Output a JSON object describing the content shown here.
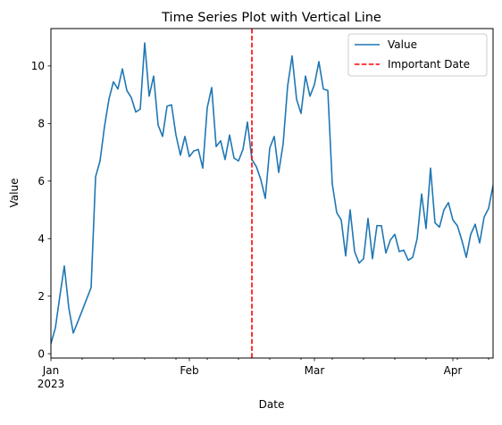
{
  "chart_data": {
    "type": "line",
    "title": "Time Series Plot with Vertical Line",
    "xlabel": "Date",
    "ylabel": "Value",
    "x_start": "2023-01-01",
    "x_end": "2023-04-10",
    "ylim": [
      -0.15,
      11.3
    ],
    "y_ticks": [
      0,
      2,
      4,
      6,
      8,
      10
    ],
    "x_ticks_major": [
      {
        "date": "2023-01-01",
        "label": "Jan",
        "sublabel": "2023"
      },
      {
        "date": "2023-02-01",
        "label": "Feb",
        "sublabel": ""
      },
      {
        "date": "2023-03-01",
        "label": "Mar",
        "sublabel": ""
      },
      {
        "date": "2023-04-01",
        "label": "Apr",
        "sublabel": ""
      }
    ],
    "x_ticks_minor": [
      "2023-01-08",
      "2023-01-15",
      "2023-01-22",
      "2023-01-29",
      "2023-02-05",
      "2023-02-12",
      "2023-02-19",
      "2023-02-26",
      "2023-03-05",
      "2023-03-12",
      "2023-03-19",
      "2023-03-26",
      "2023-04-02",
      "2023-04-09"
    ],
    "legend_position": "top-right",
    "series": [
      {
        "name": "Value",
        "color": "#1f77b4",
        "style": "solid",
        "points": [
          [
            "2023-01-01",
            0.35
          ],
          [
            "2023-01-02",
            0.9
          ],
          [
            "2023-01-03",
            2.0
          ],
          [
            "2023-01-04",
            3.05
          ],
          [
            "2023-01-05",
            1.6
          ],
          [
            "2023-01-06",
            0.72
          ],
          [
            "2023-01-07",
            1.1
          ],
          [
            "2023-01-08",
            1.5
          ],
          [
            "2023-01-09",
            1.9
          ],
          [
            "2023-01-10",
            2.3
          ],
          [
            "2023-01-11",
            6.15
          ],
          [
            "2023-01-12",
            6.7
          ],
          [
            "2023-01-13",
            7.9
          ],
          [
            "2023-01-14",
            8.85
          ],
          [
            "2023-01-15",
            9.45
          ],
          [
            "2023-01-16",
            9.2
          ],
          [
            "2023-01-17",
            9.9
          ],
          [
            "2023-01-18",
            9.15
          ],
          [
            "2023-01-19",
            8.9
          ],
          [
            "2023-01-20",
            8.4
          ],
          [
            "2023-01-21",
            8.5
          ],
          [
            "2023-01-22",
            10.8
          ],
          [
            "2023-01-23",
            8.95
          ],
          [
            "2023-01-24",
            9.65
          ],
          [
            "2023-01-25",
            7.95
          ],
          [
            "2023-01-26",
            7.55
          ],
          [
            "2023-01-27",
            8.6
          ],
          [
            "2023-01-28",
            8.65
          ],
          [
            "2023-01-29",
            7.6
          ],
          [
            "2023-01-30",
            6.9
          ],
          [
            "2023-01-31",
            7.55
          ],
          [
            "2023-02-01",
            6.85
          ],
          [
            "2023-02-02",
            7.05
          ],
          [
            "2023-02-03",
            7.1
          ],
          [
            "2023-02-04",
            6.45
          ],
          [
            "2023-02-05",
            8.55
          ],
          [
            "2023-02-06",
            9.25
          ],
          [
            "2023-02-07",
            7.2
          ],
          [
            "2023-02-08",
            7.4
          ],
          [
            "2023-02-09",
            6.75
          ],
          [
            "2023-02-10",
            7.6
          ],
          [
            "2023-02-11",
            6.8
          ],
          [
            "2023-02-12",
            6.7
          ],
          [
            "2023-02-13",
            7.1
          ],
          [
            "2023-02-14",
            8.05
          ],
          [
            "2023-02-15",
            6.75
          ],
          [
            "2023-02-16",
            6.5
          ],
          [
            "2023-02-17",
            6.05
          ],
          [
            "2023-02-18",
            5.4
          ],
          [
            "2023-02-19",
            7.15
          ],
          [
            "2023-02-20",
            7.55
          ],
          [
            "2023-02-21",
            6.3
          ],
          [
            "2023-02-22",
            7.3
          ],
          [
            "2023-02-23",
            9.3
          ],
          [
            "2023-02-24",
            10.35
          ],
          [
            "2023-02-25",
            8.85
          ],
          [
            "2023-02-26",
            8.35
          ],
          [
            "2023-02-27",
            9.65
          ],
          [
            "2023-02-28",
            8.95
          ],
          [
            "2023-03-01",
            9.35
          ],
          [
            "2023-03-02",
            10.15
          ],
          [
            "2023-03-03",
            9.2
          ],
          [
            "2023-03-04",
            9.15
          ],
          [
            "2023-03-05",
            5.9
          ],
          [
            "2023-03-06",
            4.9
          ],
          [
            "2023-03-07",
            4.65
          ],
          [
            "2023-03-08",
            3.4
          ],
          [
            "2023-03-09",
            5.0
          ],
          [
            "2023-03-10",
            3.55
          ],
          [
            "2023-03-11",
            3.15
          ],
          [
            "2023-03-12",
            3.3
          ],
          [
            "2023-03-13",
            4.7
          ],
          [
            "2023-03-14",
            3.3
          ],
          [
            "2023-03-15",
            4.45
          ],
          [
            "2023-03-16",
            4.45
          ],
          [
            "2023-03-17",
            3.5
          ],
          [
            "2023-03-18",
            3.95
          ],
          [
            "2023-03-19",
            4.15
          ],
          [
            "2023-03-20",
            3.55
          ],
          [
            "2023-03-21",
            3.6
          ],
          [
            "2023-03-22",
            3.25
          ],
          [
            "2023-03-23",
            3.35
          ],
          [
            "2023-03-24",
            4.0
          ],
          [
            "2023-03-25",
            5.55
          ],
          [
            "2023-03-26",
            4.35
          ],
          [
            "2023-03-27",
            6.45
          ],
          [
            "2023-03-28",
            4.55
          ],
          [
            "2023-03-29",
            4.4
          ],
          [
            "2023-03-30",
            5.0
          ],
          [
            "2023-03-31",
            5.25
          ],
          [
            "2023-04-01",
            4.65
          ],
          [
            "2023-04-02",
            4.45
          ],
          [
            "2023-04-03",
            3.95
          ],
          [
            "2023-04-04",
            3.35
          ],
          [
            "2023-04-05",
            4.15
          ],
          [
            "2023-04-06",
            4.5
          ],
          [
            "2023-04-07",
            3.85
          ],
          [
            "2023-04-08",
            4.75
          ],
          [
            "2023-04-09",
            5.05
          ],
          [
            "2023-04-10",
            5.85
          ],
          [
            "2023-04-11",
            6.55
          ]
        ]
      },
      {
        "name": "Important Date",
        "color": "#ff0000",
        "style": "dashed",
        "type": "vline",
        "x": "2023-02-15"
      }
    ]
  }
}
